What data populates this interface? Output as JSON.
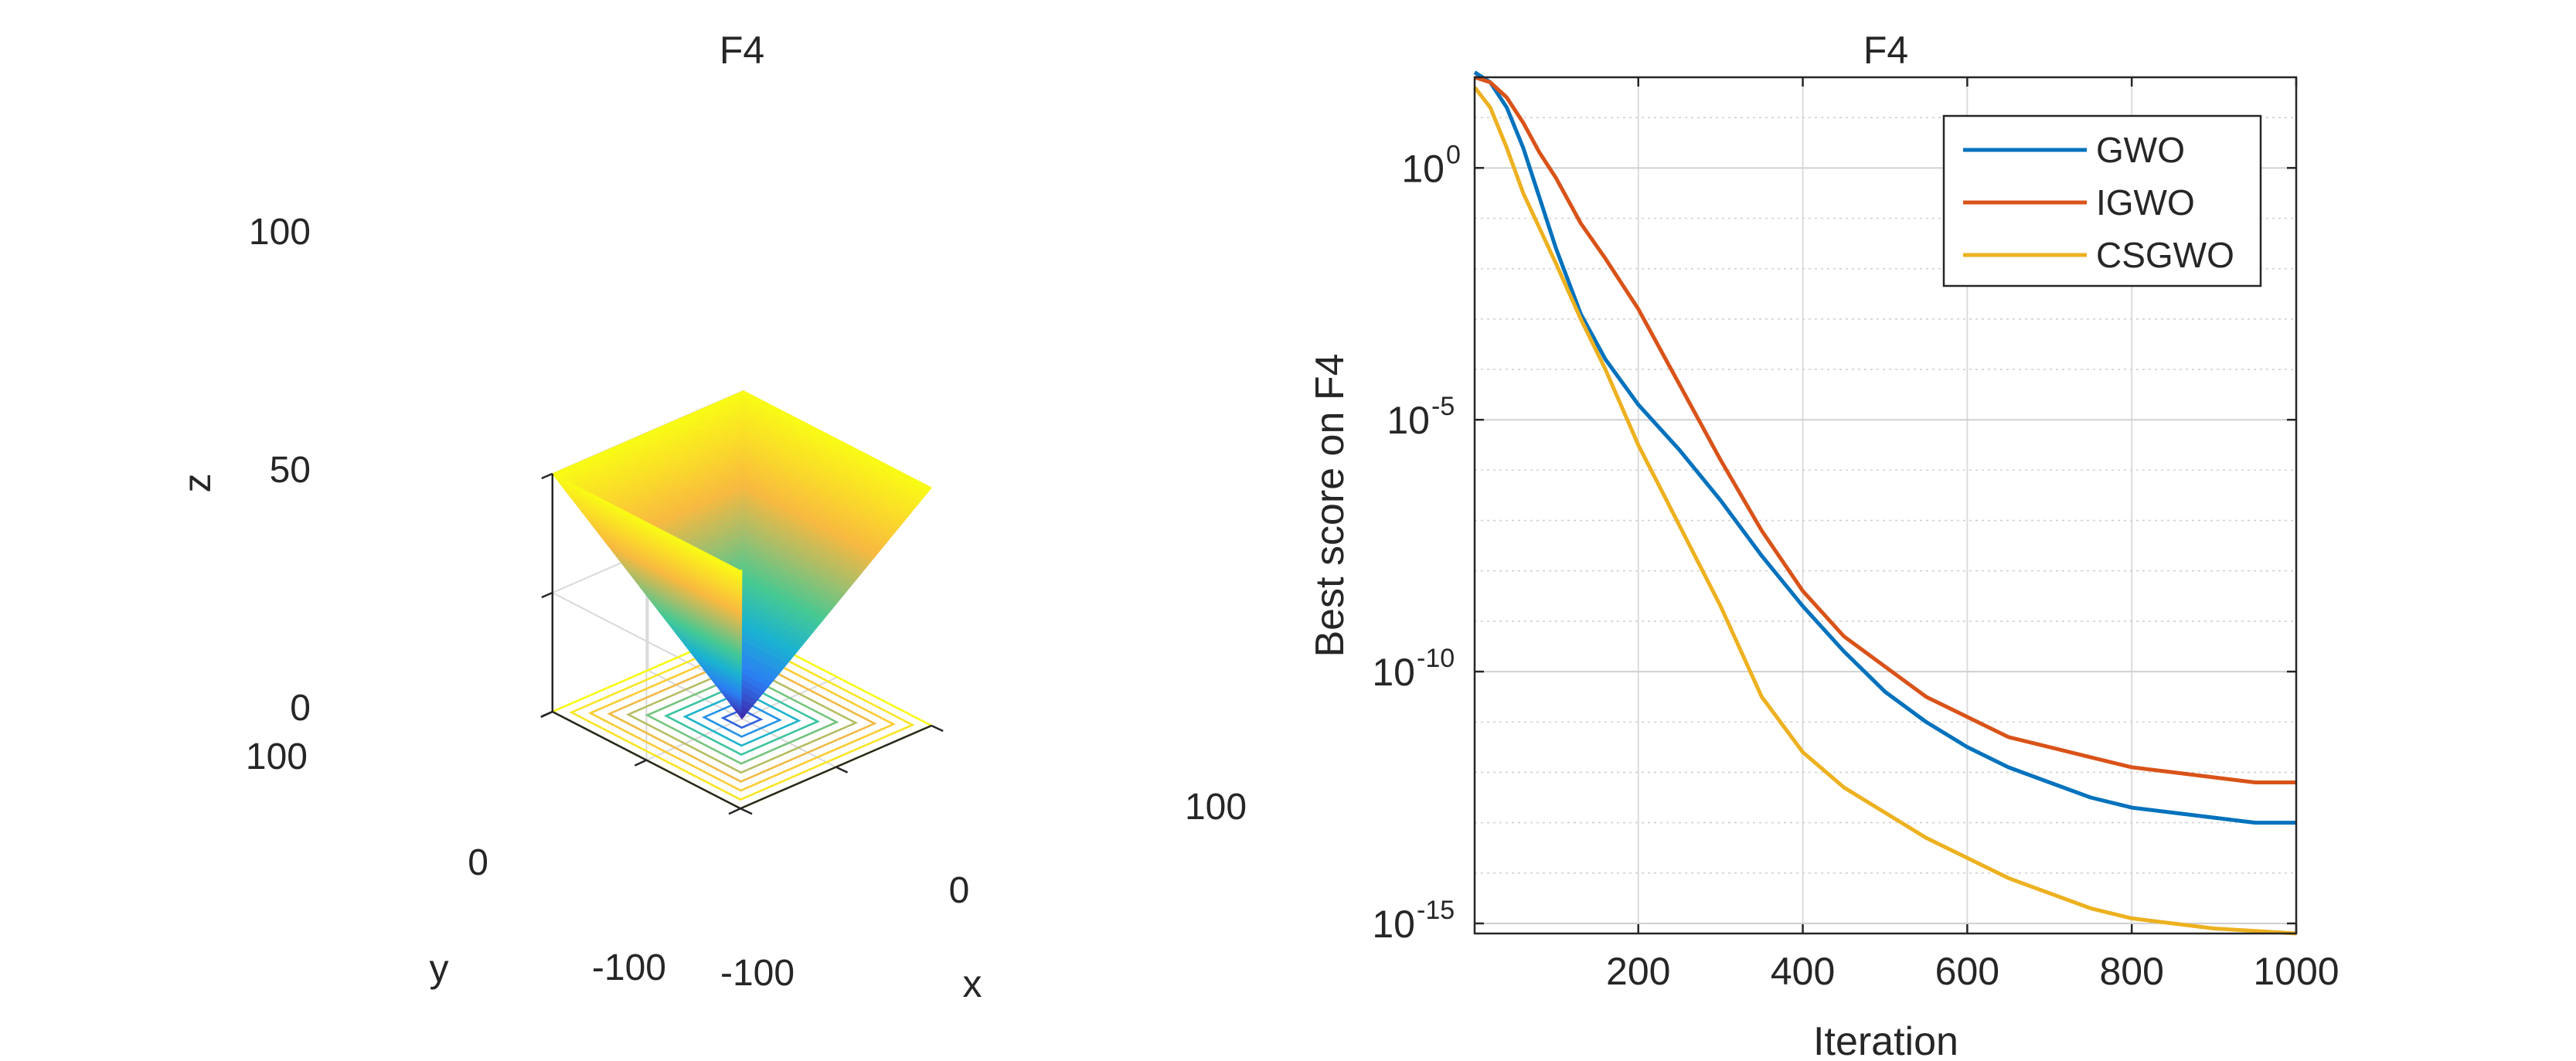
{
  "chart_data": [
    {
      "type": "surface",
      "title": "F4",
      "xlabel": "x",
      "ylabel": "y",
      "zlabel": "z",
      "xlim": [
        -100,
        100
      ],
      "ylim": [
        -100,
        100
      ],
      "zlim": [
        0,
        100
      ],
      "x_ticks": [
        "-100",
        "0",
        "100"
      ],
      "y_ticks": [
        "-100",
        "0",
        "100"
      ],
      "z_ticks": [
        "0",
        "50",
        "100"
      ],
      "function": "z = max(|x|, |y|)",
      "contour_levels": [
        10,
        20,
        30,
        40,
        50,
        60,
        70,
        80,
        90,
        100
      ],
      "colormap": [
        "#3e26a8",
        "#2c7df3",
        "#1ab2d2",
        "#46c993",
        "#a5be6b",
        "#f9b940",
        "#fadb2a",
        "#f9fb15"
      ],
      "grid": true
    },
    {
      "type": "line",
      "title": "F4",
      "xlabel": "Iteration",
      "ylabel": "Best score on F4",
      "xlim": [
        1,
        1000
      ],
      "ylim_exponent": [
        -15.2,
        1.8
      ],
      "y_scale": "log",
      "x_ticks": [
        200,
        400,
        600,
        800,
        1000
      ],
      "y_ticks": [
        {
          "base": "10",
          "exp": "0",
          "value": 0
        },
        {
          "base": "10",
          "exp": "-5",
          "value": -5
        },
        {
          "base": "10",
          "exp": "-10",
          "value": -10
        },
        {
          "base": "10",
          "exp": "-15",
          "value": -15
        }
      ],
      "grid": true,
      "legend_position": "top-right",
      "series": [
        {
          "name": "GWO",
          "color": "#0072bd",
          "x": [
            1,
            20,
            40,
            60,
            80,
            100,
            130,
            160,
            200,
            250,
            300,
            350,
            400,
            450,
            500,
            550,
            600,
            650,
            700,
            750,
            800,
            850,
            900,
            950,
            1000
          ],
          "log10_y": [
            1.9,
            1.7,
            1.2,
            0.4,
            -0.6,
            -1.6,
            -2.9,
            -3.8,
            -4.7,
            -5.6,
            -6.6,
            -7.7,
            -8.7,
            -9.6,
            -10.4,
            -11.0,
            -11.5,
            -11.9,
            -12.2,
            -12.5,
            -12.7,
            -12.8,
            -12.9,
            -13.0,
            -13.0
          ]
        },
        {
          "name": "IGWO",
          "color": "#d95319",
          "x": [
            1,
            20,
            40,
            60,
            80,
            100,
            130,
            160,
            200,
            250,
            300,
            350,
            400,
            450,
            500,
            550,
            600,
            650,
            700,
            750,
            800,
            850,
            900,
            950,
            1000
          ],
          "log10_y": [
            1.8,
            1.7,
            1.4,
            0.9,
            0.3,
            -0.2,
            -1.1,
            -1.8,
            -2.8,
            -4.3,
            -5.8,
            -7.2,
            -8.4,
            -9.3,
            -9.9,
            -10.5,
            -10.9,
            -11.3,
            -11.5,
            -11.7,
            -11.9,
            -12.0,
            -12.1,
            -12.2,
            -12.2
          ]
        },
        {
          "name": "CSGWO",
          "color": "#edb120",
          "x": [
            1,
            20,
            40,
            60,
            80,
            100,
            130,
            160,
            200,
            250,
            300,
            350,
            400,
            450,
            500,
            550,
            600,
            650,
            700,
            750,
            800,
            850,
            900,
            950,
            1000
          ],
          "log10_y": [
            1.6,
            1.2,
            0.4,
            -0.5,
            -1.2,
            -1.9,
            -3.0,
            -4.0,
            -5.5,
            -7.1,
            -8.7,
            -10.5,
            -11.6,
            -12.3,
            -12.8,
            -13.3,
            -13.7,
            -14.1,
            -14.4,
            -14.7,
            -14.9,
            -15.0,
            -15.1,
            -15.15,
            -15.2
          ]
        }
      ]
    }
  ]
}
